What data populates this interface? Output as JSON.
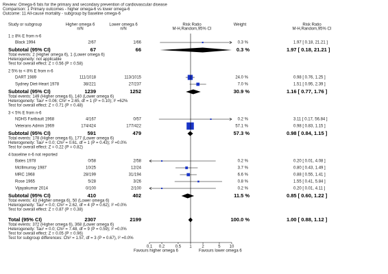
{
  "header": {
    "review": "Review:  Omega-6 fats for the primary and secondary prevention of cardiovascular disease",
    "comparison": "Comparison:  1 Primary outcomes - higher omega-6 vs lower omega-6",
    "outcome": "Outcome:  11 All-cause mortality - subgroup by baseline omega-6"
  },
  "columns": [
    {
      "title": "Study or subgroup"
    },
    {
      "title": "Higher omega 6",
      "sub": "n/N"
    },
    {
      "title": "Lower omega 6",
      "sub": "n/N"
    },
    {
      "title": "Risk Ratio",
      "sub": "M-H,Random,95% CI"
    },
    {
      "title": "Weight"
    },
    {
      "title": "Risk Ratio",
      "sub": "M-H,Random,95% CI"
    }
  ],
  "chart_data": {
    "type": "forest",
    "log_scale": true,
    "xlim": [
      0.1,
      10
    ],
    "xticks": [
      0.1,
      0.2,
      0.5,
      1,
      2,
      5,
      10
    ],
    "marker_color": "#1a35c8",
    "diamond_color": "#000000",
    "favours_left": "Favours higher omega 6",
    "favours_right": "Favours lower omega 6",
    "groups": [
      {
        "label": "1 ≥ 8% E from n-6",
        "studies": [
          {
            "name": "Black 1994",
            "higher": "2/67",
            "lower": "1/66",
            "weight": 0.3,
            "weight_label": "0.3 %",
            "rr": 1.97,
            "lo": 0.18,
            "hi": 21.21,
            "effect_label": "1.97 [ 0.18, 21.21 ]"
          }
        ],
        "subtotal": {
          "label": "Subtotal (95% CI)",
          "higher": 67,
          "lower": 66,
          "weight_label": "0.3 %",
          "rr": 1.97,
          "lo": 0.18,
          "hi": 21.21,
          "effect_label": "1.97 [ 0.18, 21.21 ]"
        },
        "notes": [
          "Total events: 2 (Higher omega 6), 1 (Lower omega 6)",
          "Heterogeneity: not applicable",
          "Test for overall effect: Z = 0.56 (P = 0.58)"
        ]
      },
      {
        "label": "2 5% to < 8% E from n-6",
        "studies": [
          {
            "name": "DART 1989",
            "higher": "111/1018",
            "lower": "113/1015",
            "weight": 24.0,
            "weight_label": "24.0 %",
            "rr": 0.98,
            "lo": 0.76,
            "hi": 1.25,
            "effect_label": "0.98 [ 0.76, 1.25 ]"
          },
          {
            "name": "Sydney Diet-Heart 1978",
            "higher": "38/221",
            "lower": "27/237",
            "weight": 7.0,
            "weight_label": "7.0 %",
            "rr": 1.51,
            "lo": 0.95,
            "hi": 2.39,
            "effect_label": "1.51 [ 0.95, 2.39 ]"
          }
        ],
        "subtotal": {
          "label": "Subtotal (95% CI)",
          "higher": 1239,
          "lower": 1252,
          "weight_label": "30.9 %",
          "rr": 1.16,
          "lo": 0.77,
          "hi": 1.76,
          "effect_label": "1.16 [ 0.77, 1.76 ]"
        },
        "notes": [
          "Total events: 149 (Higher omega 6), 140 (Lower omega 6)",
          "Heterogeneity: Tau² = 0.06; Chi² = 2.65, df = 1 (P = 0.10); I² =62%",
          "Test for overall effect: Z = 0.71 (P = 0.48)"
        ]
      },
      {
        "label": "3 < 5% E from n-6",
        "studies": [
          {
            "name": "NDHS Faribault 1968",
            "higher": "4/167",
            "lower": "0/57",
            "weight": 0.2,
            "weight_label": "0.2 %",
            "rr": 3.11,
            "lo": 0.17,
            "hi": 56.84,
            "effect_label": "3.11 [ 0.17, 56.84 ]"
          },
          {
            "name": "Veterans Admin 1969",
            "higher": "174/424",
            "lower": "177/422",
            "weight": 57.1,
            "weight_label": "57.1 %",
            "rr": 0.98,
            "lo": 0.83,
            "hi": 1.15,
            "effect_label": "0.98 [ 0.83, 1.15 ]"
          }
        ],
        "subtotal": {
          "label": "Subtotal (95% CI)",
          "higher": 591,
          "lower": 479,
          "weight_label": "57.3 %",
          "rr": 0.98,
          "lo": 0.84,
          "hi": 1.15,
          "effect_label": "0.98 [ 0.84, 1.15 ]"
        },
        "notes": [
          "Total events: 178 (Higher omega 6), 177 (Lower omega 6)",
          "Heterogeneity: Tau² = 0.0; Chi² = 0.61, df = 1 (P = 0.43); I² =0.0%",
          "Test for overall effect: Z = 0.22 (P = 0.82)"
        ]
      },
      {
        "label": "4 baseline n-6 not reported",
        "studies": [
          {
            "name": "Bates 1978",
            "higher": "0/58",
            "lower": "2/58",
            "weight": 0.2,
            "weight_label": "0.2 %",
            "rr": 0.2,
            "lo": 0.01,
            "hi": 4.08,
            "effect_label": "0.20 [ 0.01, 4.08 ]"
          },
          {
            "name": "McIllmurray 1987",
            "higher": "10/25",
            "lower": "12/24",
            "weight": 3.7,
            "weight_label": "3.7 %",
            "rr": 0.8,
            "lo": 0.43,
            "hi": 1.49,
            "effect_label": "0.80 [ 0.43, 1.49 ]"
          },
          {
            "name": "MRC 1968",
            "higher": "28/199",
            "lower": "31/194",
            "weight": 6.6,
            "weight_label": "6.6 %",
            "rr": 0.88,
            "lo": 0.55,
            "hi": 1.41,
            "effect_label": "0.88 [ 0.55, 1.41 ]"
          },
          {
            "name": "Rose 1965",
            "higher": "5/28",
            "lower": "3/26",
            "weight": 0.8,
            "weight_label": "0.8 %",
            "rr": 1.55,
            "lo": 0.41,
            "hi": 5.84,
            "effect_label": "1.55 [ 0.41, 5.84 ]"
          },
          {
            "name": "Vijayakumar 2014",
            "higher": "0/100",
            "lower": "2/100",
            "weight": 0.2,
            "weight_label": "0.2 %",
            "rr": 0.2,
            "lo": 0.01,
            "hi": 4.11,
            "effect_label": "0.20 [ 0.01, 4.11 ]"
          }
        ],
        "subtotal": {
          "label": "Subtotal (95% CI)",
          "higher": 410,
          "lower": 402,
          "weight_label": "11.5 %",
          "rr": 0.85,
          "lo": 0.6,
          "hi": 1.22,
          "effect_label": "0.85 [ 0.60, 1.22 ]"
        },
        "notes": [
          "Total events: 43 (Higher omega 6), 50 (Lower omega 6)",
          "Heterogeneity: Tau² = 0.0; Chi² = 2.62, df = 4 (P = 0.62); I² =0.0%",
          "Test for overall effect: Z = 0.87 (P = 0.38)"
        ]
      }
    ],
    "total": {
      "label": "Total (95% CI)",
      "higher": 2307,
      "lower": 2199,
      "weight_label": "100.0 %",
      "rr": 1.0,
      "lo": 0.88,
      "hi": 1.12,
      "effect_label": "1.00 [ 0.88, 1.12 ]",
      "notes": [
        "Total events: 372 (Higher omega 6), 368 (Lower omega 6)",
        "Heterogeneity: Tau² = 0.0; Chi² = 7.48, df = 9 (P = 0.59); I² =0.0%",
        "Test for overall effect: Z = 0.05 (P = 0.96)",
        "Test for subgroup differences: Chi² = 1.57, df = 3 (P = 0.67), I² =0.0%"
      ]
    }
  }
}
